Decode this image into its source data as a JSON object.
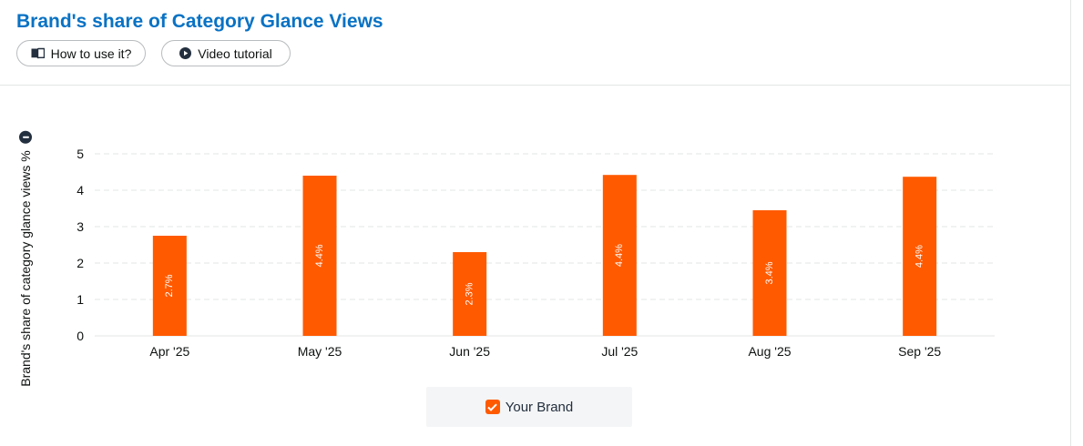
{
  "header": {
    "title": "Brand's share of Category Glance Views",
    "how_to_label": "How to use it?",
    "video_label": "Video tutorial",
    "how_to_icon": "book-icon",
    "video_icon": "play-circle-icon"
  },
  "chart_data": {
    "type": "bar",
    "categories": [
      "Apr '25",
      "May '25",
      "Jun '25",
      "Jul '25",
      "Aug '25",
      "Sep '25"
    ],
    "series": [
      {
        "name": "Your Brand",
        "values": [
          2.75,
          4.4,
          2.3,
          4.42,
          3.45,
          4.37
        ],
        "data_labels": [
          "2.7%",
          "4.4%",
          "2.3%",
          "4.4%",
          "3.4%",
          "4.4%"
        ],
        "color": "#ff5a00"
      }
    ],
    "ylabel": "Brand's share of category glance views %",
    "xlabel": "",
    "ylim": [
      0,
      5
    ],
    "yticks": [
      "0",
      "1",
      "2",
      "3",
      "4",
      "5"
    ],
    "grid": true,
    "legend_position": "bottom-center"
  },
  "legend": {
    "label": "Your Brand",
    "checked": true,
    "color": "#ff5a00"
  },
  "colors": {
    "title": "#0972c4",
    "bar": "#ff5a00",
    "grid": "#e3e6e6"
  }
}
